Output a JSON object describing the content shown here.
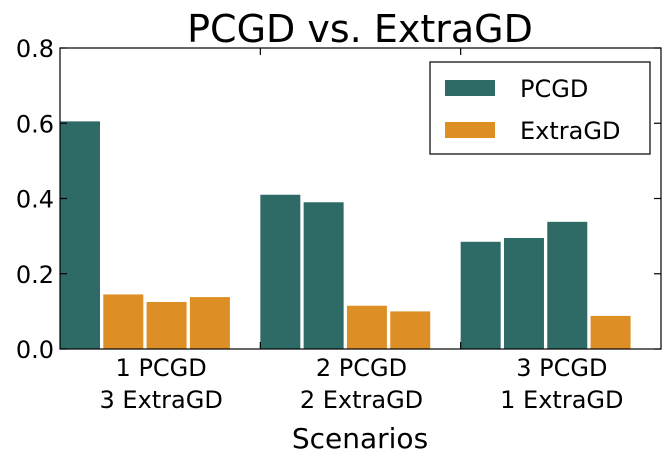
{
  "chart_data": {
    "type": "bar",
    "title": "PCGD vs. ExtraGD",
    "xlabel": "Scenarios",
    "ylabel": "",
    "ylim": [
      0,
      0.8
    ],
    "yticks": [
      "0.0",
      "0.2",
      "0.4",
      "0.6",
      "0.8"
    ],
    "grid": false,
    "legend_position": "top-right",
    "series": [
      {
        "name": "PCGD",
        "color": "#2e6b66"
      },
      {
        "name": "ExtraGD",
        "color": "#dd8f25"
      }
    ],
    "groups": [
      {
        "label_line1": "1 PCGD",
        "label_line2": "3 ExtraGD",
        "bars": [
          {
            "series": "PCGD",
            "value": 0.605
          },
          {
            "series": "ExtraGD",
            "value": 0.145
          },
          {
            "series": "ExtraGD",
            "value": 0.125
          },
          {
            "series": "ExtraGD",
            "value": 0.138
          }
        ]
      },
      {
        "label_line1": "2 PCGD",
        "label_line2": "2 ExtraGD",
        "bars": [
          {
            "series": "PCGD",
            "value": 0.41
          },
          {
            "series": "PCGD",
            "value": 0.39
          },
          {
            "series": "ExtraGD",
            "value": 0.115
          },
          {
            "series": "ExtraGD",
            "value": 0.1
          }
        ]
      },
      {
        "label_line1": "3 PCGD",
        "label_line2": "1 ExtraGD",
        "bars": [
          {
            "series": "PCGD",
            "value": 0.285
          },
          {
            "series": "PCGD",
            "value": 0.295
          },
          {
            "series": "PCGD",
            "value": 0.338
          },
          {
            "series": "ExtraGD",
            "value": 0.088
          }
        ]
      }
    ]
  }
}
